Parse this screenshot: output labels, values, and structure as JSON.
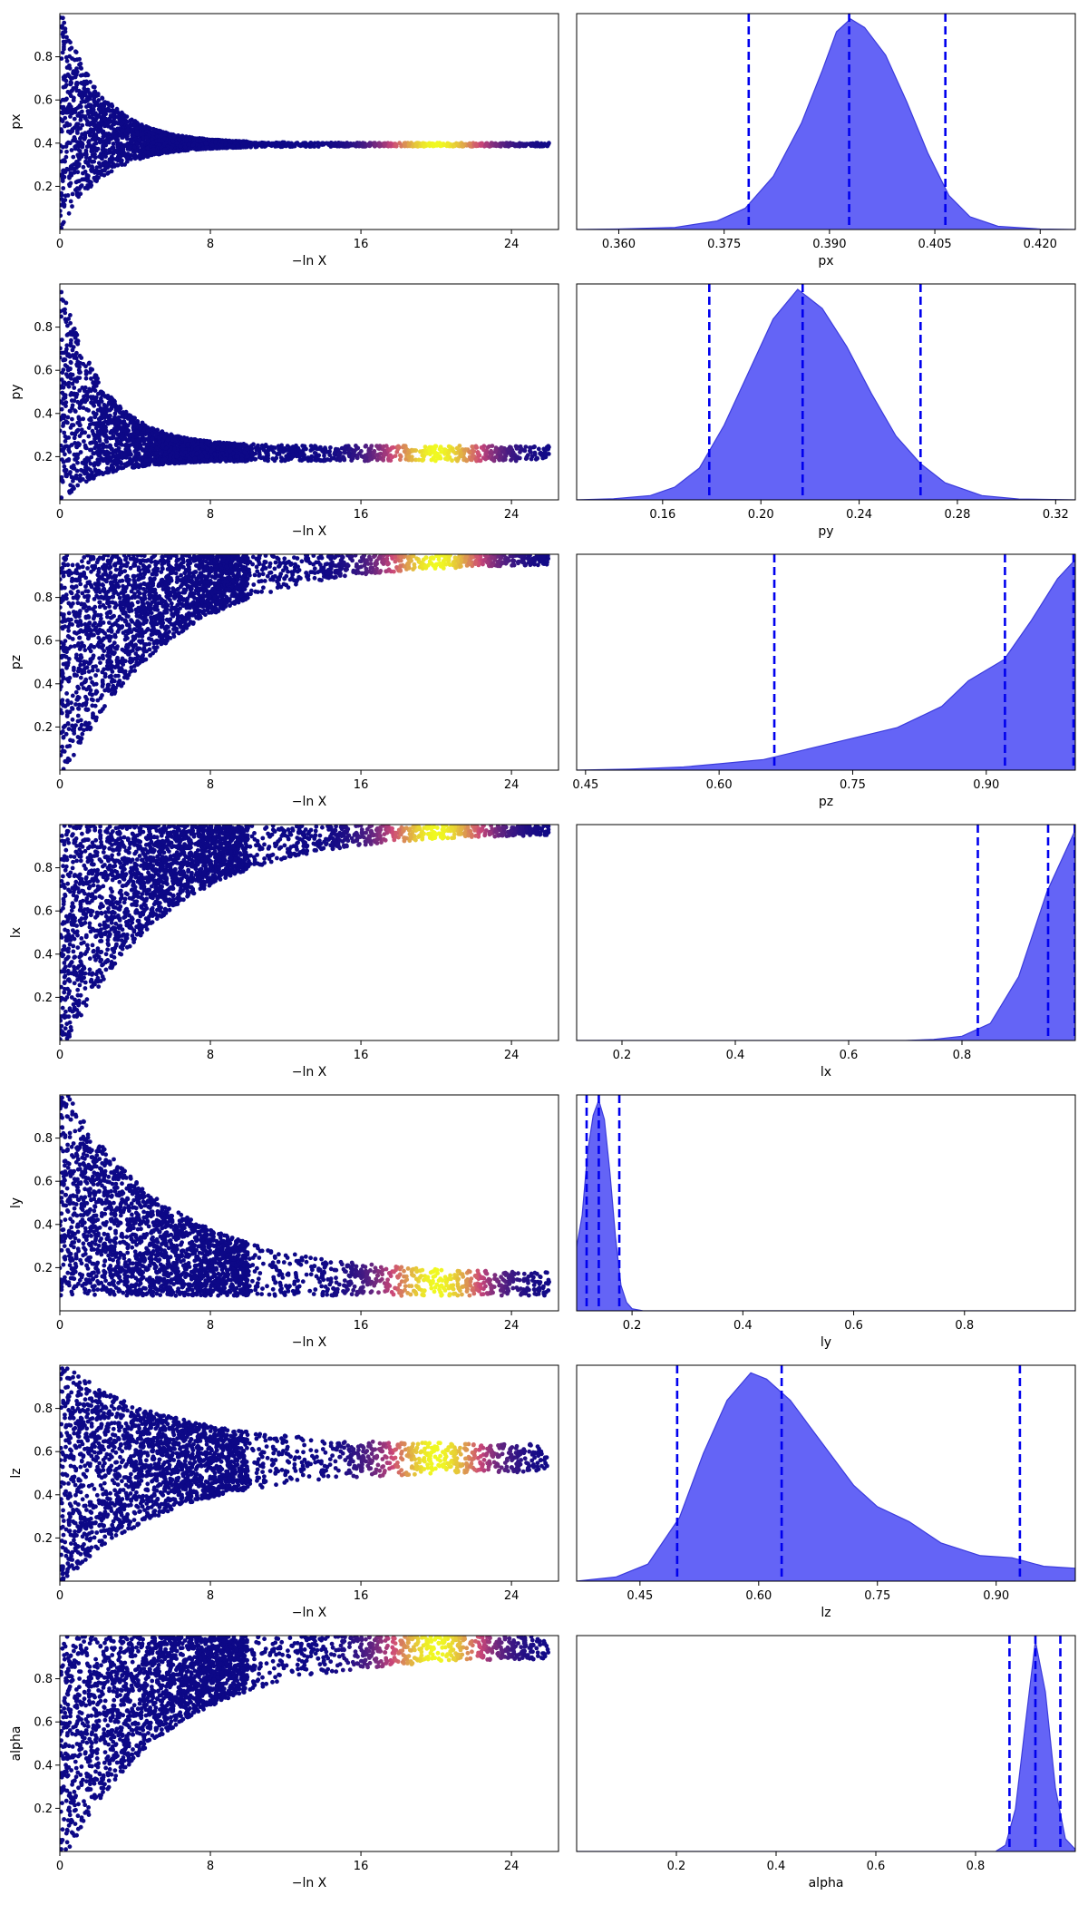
{
  "colors": {
    "trace_low": "#0d0887",
    "trace_mid": "#cc4778",
    "trace_high": "#f0f921",
    "kde_fill": "#6464f6",
    "kde_edge": "#3b3bdc",
    "quantile_line": "#0000ee"
  },
  "chart_data": [
    {
      "type": "scatter",
      "panel": "trace",
      "parameter": "px",
      "xlabel": "−ln X",
      "ylabel": "px",
      "xlim": [
        0,
        26.5
      ],
      "ylim": [
        0,
        1
      ],
      "xticks": [
        0,
        8,
        16,
        24
      ],
      "yticks": [
        0.2,
        0.4,
        0.6,
        0.8
      ],
      "converged_value": 0.393,
      "converged_spread": 0.008,
      "peak_weight_at": 20,
      "shape": "narrow"
    },
    {
      "type": "area",
      "panel": "marginal",
      "parameter": "px",
      "xlabel": "px",
      "ylabel": "",
      "xlim": [
        0.354,
        0.425
      ],
      "xticks": [
        "0.360",
        "0.375",
        "0.390",
        "0.405",
        "0.420"
      ],
      "xtick_values": [
        0.36,
        0.375,
        0.39,
        0.405,
        0.42
      ],
      "peak": 0.3925,
      "kde_curve": [
        [
          0.354,
          0
        ],
        [
          0.36,
          0.002
        ],
        [
          0.368,
          0.01
        ],
        [
          0.374,
          0.04
        ],
        [
          0.378,
          0.1
        ],
        [
          0.382,
          0.25
        ],
        [
          0.386,
          0.5
        ],
        [
          0.389,
          0.75
        ],
        [
          0.391,
          0.93
        ],
        [
          0.393,
          0.99
        ],
        [
          0.395,
          0.95
        ],
        [
          0.398,
          0.82
        ],
        [
          0.401,
          0.6
        ],
        [
          0.404,
          0.36
        ],
        [
          0.407,
          0.16
        ],
        [
          0.41,
          0.06
        ],
        [
          0.414,
          0.015
        ],
        [
          0.42,
          0.002
        ],
        [
          0.425,
          0
        ]
      ],
      "quantiles": [
        0.3785,
        0.3928,
        0.4065
      ]
    },
    {
      "type": "scatter",
      "panel": "trace",
      "parameter": "py",
      "xlabel": "−ln X",
      "ylabel": "py",
      "xlim": [
        0,
        26.5
      ],
      "ylim": [
        0,
        1
      ],
      "xticks": [
        0,
        8,
        16,
        24
      ],
      "yticks": [
        0.2,
        0.4,
        0.6,
        0.8
      ],
      "converged_value": 0.215,
      "converged_spread": 0.035,
      "peak_weight_at": 20,
      "shape": "narrow"
    },
    {
      "type": "area",
      "panel": "marginal",
      "parameter": "py",
      "xlabel": "py",
      "ylabel": "",
      "xlim": [
        0.125,
        0.328
      ],
      "xticks": [
        "0.16",
        "0.20",
        "0.24",
        "0.28",
        "0.32"
      ],
      "xtick_values": [
        0.16,
        0.2,
        0.24,
        0.28,
        0.32
      ],
      "peak": 0.216,
      "kde_curve": [
        [
          0.125,
          0
        ],
        [
          0.14,
          0.005
        ],
        [
          0.155,
          0.02
        ],
        [
          0.165,
          0.06
        ],
        [
          0.175,
          0.15
        ],
        [
          0.185,
          0.35
        ],
        [
          0.195,
          0.6
        ],
        [
          0.205,
          0.85
        ],
        [
          0.215,
          0.99
        ],
        [
          0.225,
          0.9
        ],
        [
          0.235,
          0.72
        ],
        [
          0.245,
          0.5
        ],
        [
          0.255,
          0.3
        ],
        [
          0.265,
          0.17
        ],
        [
          0.275,
          0.08
        ],
        [
          0.29,
          0.02
        ],
        [
          0.305,
          0.004
        ],
        [
          0.328,
          0
        ]
      ],
      "quantiles": [
        0.179,
        0.217,
        0.265
      ]
    },
    {
      "type": "scatter",
      "panel": "trace",
      "parameter": "pz",
      "xlabel": "−ln X",
      "ylabel": "pz",
      "xlim": [
        0,
        26.5
      ],
      "ylim": [
        0,
        1
      ],
      "xticks": [
        0,
        8,
        16,
        24
      ],
      "yticks": [
        0.2,
        0.4,
        0.6,
        0.8
      ],
      "converged_value": 0.98,
      "converged_spread": 0.02,
      "peak_weight_at": 20,
      "shape": "upper"
    },
    {
      "type": "area",
      "panel": "marginal",
      "parameter": "pz",
      "xlabel": "pz",
      "ylabel": "",
      "xlim": [
        0.44,
        1.0
      ],
      "xticks": [
        "0.45",
        "0.60",
        "0.75",
        "0.90"
      ],
      "xtick_values": [
        0.45,
        0.6,
        0.75,
        0.9
      ],
      "peak": 1.0,
      "kde_curve": [
        [
          0.44,
          0
        ],
        [
          0.5,
          0.005
        ],
        [
          0.56,
          0.015
        ],
        [
          0.6,
          0.03
        ],
        [
          0.65,
          0.05
        ],
        [
          0.7,
          0.1
        ],
        [
          0.75,
          0.15
        ],
        [
          0.8,
          0.2
        ],
        [
          0.85,
          0.3
        ],
        [
          0.88,
          0.42
        ],
        [
          0.92,
          0.52
        ],
        [
          0.95,
          0.7
        ],
        [
          0.98,
          0.9
        ],
        [
          1.0,
          0.99
        ]
      ],
      "quantiles": [
        0.662,
        0.921,
        0.998
      ]
    },
    {
      "type": "scatter",
      "panel": "trace",
      "parameter": "lx",
      "xlabel": "−ln X",
      "ylabel": "lx",
      "xlim": [
        0,
        26.5
      ],
      "ylim": [
        0,
        1
      ],
      "xticks": [
        0,
        8,
        16,
        24
      ],
      "yticks": [
        0.2,
        0.4,
        0.6,
        0.8
      ],
      "converged_value": 0.98,
      "converged_spread": 0.02,
      "peak_weight_at": 20,
      "shape": "upper"
    },
    {
      "type": "area",
      "panel": "marginal",
      "parameter": "lx",
      "xlabel": "lx",
      "ylabel": "",
      "xlim": [
        0.12,
        1.0
      ],
      "xticks": [
        "0.2",
        "0.4",
        "0.6",
        "0.8"
      ],
      "xtick_values": [
        0.2,
        0.4,
        0.6,
        0.8
      ],
      "peak": 1.0,
      "kde_curve": [
        [
          0.12,
          0
        ],
        [
          0.7,
          0
        ],
        [
          0.75,
          0.005
        ],
        [
          0.8,
          0.02
        ],
        [
          0.85,
          0.08
        ],
        [
          0.9,
          0.3
        ],
        [
          0.95,
          0.7
        ],
        [
          1.0,
          0.99
        ]
      ],
      "quantiles": [
        0.828,
        0.952,
        0.999
      ]
    },
    {
      "type": "scatter",
      "panel": "trace",
      "parameter": "ly",
      "xlabel": "−ln X",
      "ylabel": "ly",
      "xlim": [
        0,
        26.5
      ],
      "ylim": [
        0,
        1
      ],
      "xticks": [
        0,
        8,
        16,
        24
      ],
      "yticks": [
        0.2,
        0.4,
        0.6,
        0.8
      ],
      "converged_value": 0.14,
      "converged_spread": 0.03,
      "peak_weight_at": 20,
      "shape": "lower"
    },
    {
      "type": "area",
      "panel": "marginal",
      "parameter": "ly",
      "xlabel": "ly",
      "ylabel": "",
      "xlim": [
        0.1,
        1.0
      ],
      "xticks": [
        "0.2",
        "0.4",
        "0.6",
        "0.8"
      ],
      "xtick_values": [
        0.2,
        0.4,
        0.6,
        0.8
      ],
      "peak": 0.14,
      "kde_curve": [
        [
          0.1,
          0.3
        ],
        [
          0.11,
          0.45
        ],
        [
          0.12,
          0.75
        ],
        [
          0.13,
          0.92
        ],
        [
          0.14,
          0.99
        ],
        [
          0.15,
          0.9
        ],
        [
          0.16,
          0.65
        ],
        [
          0.17,
          0.35
        ],
        [
          0.18,
          0.12
        ],
        [
          0.19,
          0.04
        ],
        [
          0.2,
          0.01
        ],
        [
          0.22,
          0
        ],
        [
          1.0,
          0
        ]
      ],
      "quantiles": [
        0.118,
        0.14,
        0.177
      ]
    },
    {
      "type": "scatter",
      "panel": "trace",
      "parameter": "lz",
      "xlabel": "−ln X",
      "ylabel": "lz",
      "xlim": [
        0,
        26.5
      ],
      "ylim": [
        0,
        1
      ],
      "xticks": [
        0,
        8,
        16,
        24
      ],
      "yticks": [
        0.2,
        0.4,
        0.6,
        0.8
      ],
      "converged_value": 0.57,
      "converged_spread": 0.06,
      "peak_weight_at": 20,
      "shape": "wide"
    },
    {
      "type": "area",
      "panel": "marginal",
      "parameter": "lz",
      "xlabel": "lz",
      "ylabel": "",
      "xlim": [
        0.37,
        1.0
      ],
      "xticks": [
        "0.45",
        "0.60",
        "0.75",
        "0.90"
      ],
      "xtick_values": [
        0.45,
        0.6,
        0.75,
        0.9
      ],
      "peak": 0.59,
      "kde_curve": [
        [
          0.37,
          0
        ],
        [
          0.42,
          0.02
        ],
        [
          0.46,
          0.08
        ],
        [
          0.5,
          0.3
        ],
        [
          0.53,
          0.6
        ],
        [
          0.56,
          0.85
        ],
        [
          0.59,
          0.98
        ],
        [
          0.61,
          0.95
        ],
        [
          0.64,
          0.85
        ],
        [
          0.68,
          0.65
        ],
        [
          0.72,
          0.45
        ],
        [
          0.75,
          0.35
        ],
        [
          0.79,
          0.28
        ],
        [
          0.83,
          0.18
        ],
        [
          0.88,
          0.12
        ],
        [
          0.92,
          0.11
        ],
        [
          0.96,
          0.07
        ],
        [
          1.0,
          0.06
        ]
      ],
      "quantiles": [
        0.497,
        0.629,
        0.93
      ]
    },
    {
      "type": "scatter",
      "panel": "trace",
      "parameter": "alpha",
      "xlabel": "−ln X",
      "ylabel": "alpha",
      "xlim": [
        0,
        26.5
      ],
      "ylim": [
        0,
        1
      ],
      "xticks": [
        0,
        8,
        16,
        24
      ],
      "yticks": [
        0.2,
        0.4,
        0.6,
        0.8
      ],
      "converged_value": 0.92,
      "converged_spread": 0.02,
      "peak_weight_at": 20,
      "shape": "upper"
    },
    {
      "type": "area",
      "panel": "marginal",
      "parameter": "alpha",
      "xlabel": "alpha",
      "ylabel": "",
      "xlim": [
        0.0,
        1.0
      ],
      "xticks": [
        "0.2",
        "0.4",
        "0.6",
        "0.8"
      ],
      "xtick_values": [
        0.2,
        0.4,
        0.6,
        0.8
      ],
      "peak": 0.92,
      "kde_curve": [
        [
          0.0,
          0
        ],
        [
          0.84,
          0
        ],
        [
          0.86,
          0.03
        ],
        [
          0.88,
          0.2
        ],
        [
          0.9,
          0.6
        ],
        [
          0.92,
          0.99
        ],
        [
          0.94,
          0.75
        ],
        [
          0.96,
          0.3
        ],
        [
          0.98,
          0.06
        ],
        [
          1.0,
          0.01
        ]
      ],
      "quantiles": [
        0.868,
        0.92,
        0.97
      ]
    }
  ]
}
